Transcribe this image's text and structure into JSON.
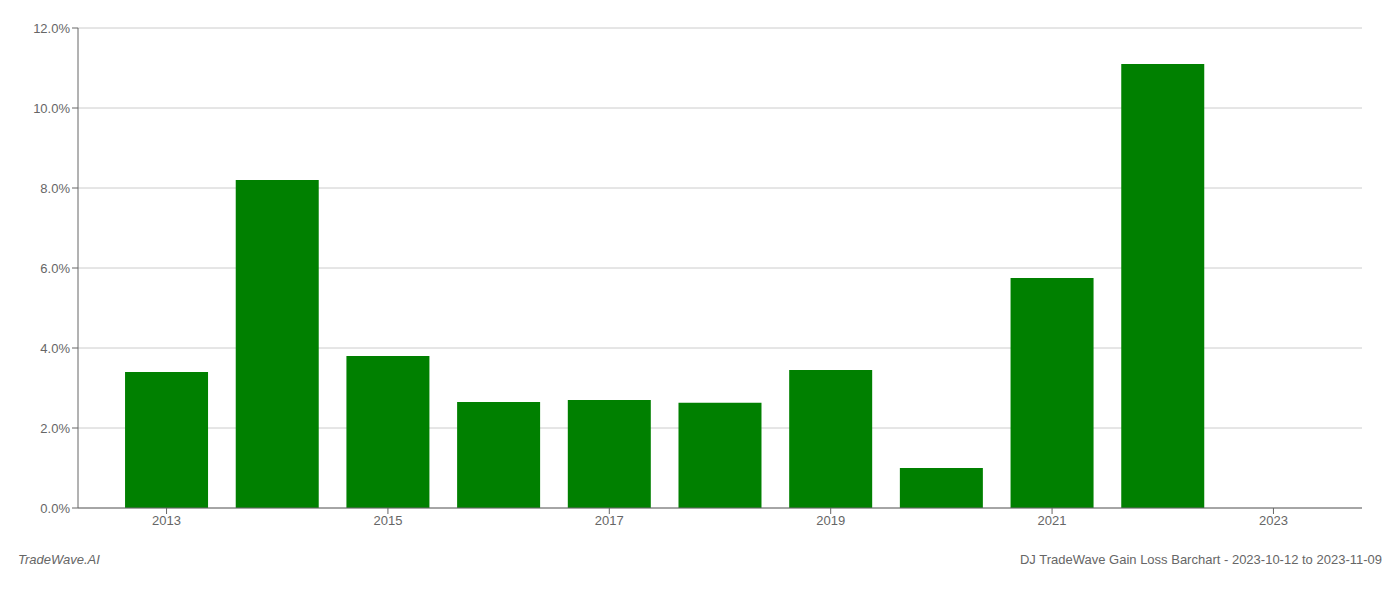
{
  "chart_data": {
    "type": "bar",
    "x": [
      2013,
      2014,
      2015,
      2016,
      2017,
      2018,
      2019,
      2020,
      2021,
      2022
    ],
    "values": [
      0.034,
      0.082,
      0.038,
      0.0265,
      0.027,
      0.0263,
      0.0345,
      0.01,
      0.0575,
      0.111
    ],
    "color": "#008000",
    "xlim": [
      2012.2,
      2023.8
    ],
    "xticks": [
      2013,
      2015,
      2017,
      2019,
      2021,
      2023
    ],
    "ylim": [
      0,
      0.12
    ],
    "yticks": [
      {
        "value": 0.0,
        "label": "0.0%"
      },
      {
        "value": 0.02,
        "label": "2.0%"
      },
      {
        "value": 0.04,
        "label": "4.0%"
      },
      {
        "value": 0.06,
        "label": "6.0%"
      },
      {
        "value": 0.08,
        "label": "8.0%"
      },
      {
        "value": 0.1,
        "label": "10.0%"
      },
      {
        "value": 0.12,
        "label": "12.0%"
      }
    ],
    "grid": "y",
    "annotations": [
      "TradeWave.AI",
      "DJ TradeWave Gain Loss Barchart - 2023-10-12 to 2023-11-09"
    ]
  }
}
